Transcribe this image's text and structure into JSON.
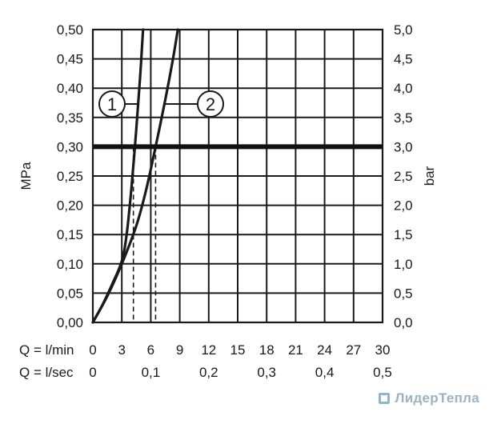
{
  "chart_data": {
    "type": "line",
    "ylabel_left": "MPa",
    "ylabel_right": "bar",
    "x_row_labels": [
      "Q = l/min",
      "Q = l/sec"
    ],
    "x_ticks_lmin": [
      "0",
      "3",
      "6",
      "9",
      "12",
      "15",
      "18",
      "21",
      "24",
      "27",
      "30"
    ],
    "x_ticks_lsec": [
      "0",
      "0,1",
      "0,2",
      "0,3",
      "0,4",
      "0,5"
    ],
    "y_ticks_left": [
      "0,00",
      "0,05",
      "0,10",
      "0,15",
      "0,20",
      "0,25",
      "0,30",
      "0,35",
      "0,40",
      "0,45",
      "0,50"
    ],
    "y_ticks_right": [
      "0,0",
      "0,5",
      "1,0",
      "1,5",
      "2,0",
      "2,5",
      "3,0",
      "3,5",
      "4,0",
      "4,5",
      "5,0"
    ],
    "xlim": [
      0,
      30
    ],
    "ylim": [
      0,
      0.5
    ],
    "grid": true,
    "reference_line": {
      "y": 0.3
    },
    "series": [
      {
        "name": "1",
        "x": [
          0,
          1.0,
          2.0,
          3.0,
          3.5,
          4.0,
          4.5,
          4.9,
          5.2
        ],
        "y": [
          0,
          0.03,
          0.065,
          0.105,
          0.15,
          0.23,
          0.33,
          0.42,
          0.5
        ],
        "marker_x": 4.2
      },
      {
        "name": "2",
        "x": [
          0,
          1.5,
          3.0,
          4.5,
          5.5,
          6.5,
          7.5,
          8.3,
          8.8
        ],
        "y": [
          0,
          0.045,
          0.1,
          0.165,
          0.225,
          0.3,
          0.38,
          0.45,
          0.5
        ],
        "marker_x": 6.5
      }
    ]
  },
  "watermark": {
    "text": "ЛидерТепла"
  }
}
